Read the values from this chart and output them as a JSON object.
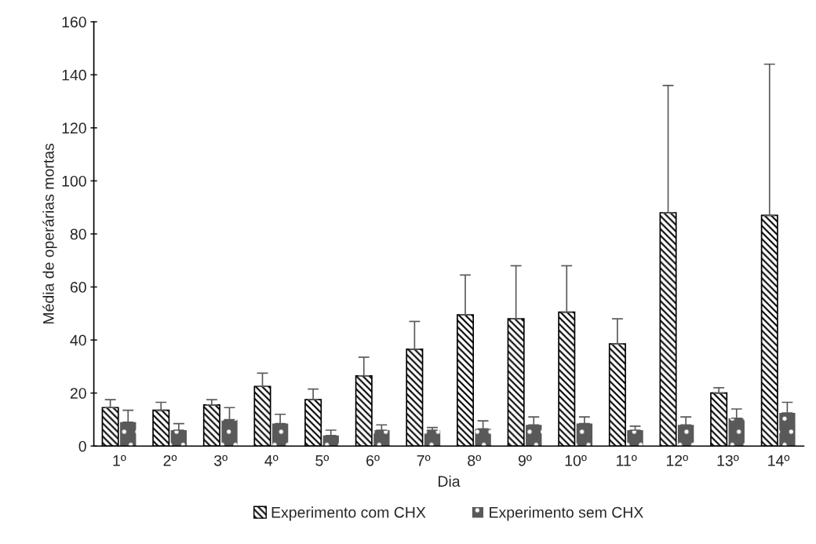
{
  "chart_data": {
    "type": "bar",
    "xlabel": "Dia",
    "ylabel": "Média de operárias mortas",
    "categories": [
      "1º",
      "2º",
      "3º",
      "4º",
      "5º",
      "6º",
      "7º",
      "8º",
      "9º",
      "10º",
      "11º",
      "12º",
      "13º",
      "14º"
    ],
    "series": [
      {
        "name": "Experimento com CHX",
        "color": "#000000",
        "values": [
          14.5,
          13.5,
          15.5,
          22.5,
          17.5,
          26.5,
          36.5,
          49.5,
          48,
          50.5,
          38.5,
          88,
          20,
          87
        ],
        "errors": [
          [
            14.5,
            17.5
          ],
          [
            13.5,
            16.5
          ],
          [
            15.5,
            17.5
          ],
          [
            22.5,
            27.5
          ],
          [
            17.5,
            21.5
          ],
          [
            26.5,
            33.5
          ],
          [
            36.5,
            47
          ],
          [
            49.5,
            64.5
          ],
          [
            48,
            68
          ],
          [
            50.5,
            68
          ],
          [
            38.5,
            48
          ],
          [
            88,
            136
          ],
          [
            20,
            22
          ],
          [
            87,
            144
          ]
        ]
      },
      {
        "name": "Experimento sem CHX",
        "color": "#595959",
        "values": [
          9,
          6,
          10,
          8.5,
          4,
          6,
          6,
          6.5,
          8,
          8.5,
          6,
          8,
          10.5,
          12.5
        ],
        "errors": [
          [
            9,
            13.5
          ],
          [
            6,
            8.5
          ],
          [
            10,
            14.5
          ],
          [
            8.5,
            12
          ],
          [
            4,
            6
          ],
          [
            6,
            8
          ],
          [
            6,
            7
          ],
          [
            6.5,
            9.5
          ],
          [
            8,
            11
          ],
          [
            8.5,
            11
          ],
          [
            6,
            7.5
          ],
          [
            8,
            11
          ],
          [
            10.5,
            14
          ],
          [
            12.5,
            16.5
          ]
        ]
      }
    ],
    "ylim": [
      0,
      160
    ],
    "yticks": [
      0,
      20,
      40,
      60,
      80,
      100,
      120,
      140,
      160
    ],
    "grid": false,
    "legend": "bottom"
  }
}
